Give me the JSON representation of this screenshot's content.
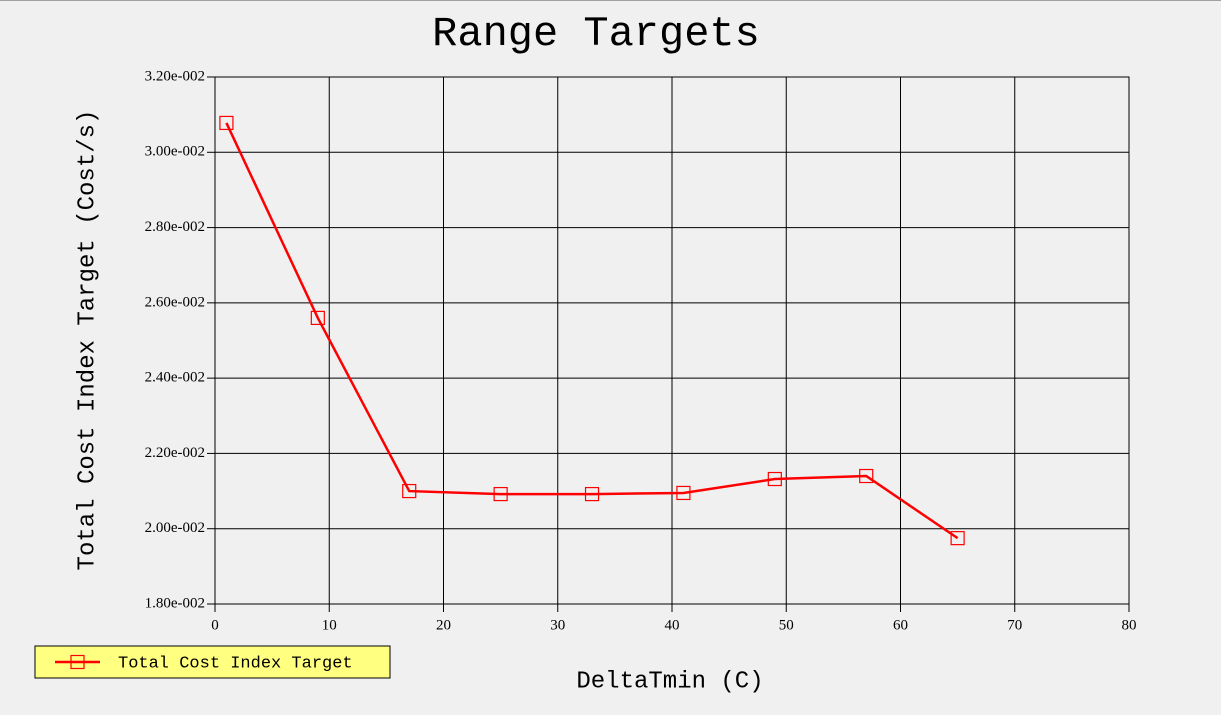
{
  "chart_data": {
    "type": "line",
    "title": "Range Targets",
    "x_label": "DeltaTmin (C)",
    "y_label": "Total Cost Index Target (Cost/s)",
    "x": [
      1,
      9,
      17,
      25,
      33,
      41,
      49,
      57,
      65
    ],
    "series": [
      {
        "name": "Total Cost Index Target",
        "color": "#ff0000",
        "values": [
          0.03078,
          0.0256,
          0.021,
          0.02092,
          0.02092,
          0.02095,
          0.02132,
          0.0214,
          0.01975
        ]
      }
    ],
    "xlim": [
      0,
      80
    ],
    "xticks": [
      0,
      10,
      20,
      30,
      40,
      50,
      60,
      70,
      80
    ],
    "ylim": [
      0.018,
      0.032
    ],
    "yticks": [
      {
        "value": 0.018,
        "label": "1.80e-002"
      },
      {
        "value": 0.02,
        "label": "2.00e-002"
      },
      {
        "value": 0.022,
        "label": "2.20e-002"
      },
      {
        "value": 0.024,
        "label": "2.40e-002"
      },
      {
        "value": 0.026,
        "label": "2.60e-002"
      },
      {
        "value": 0.028,
        "label": "2.80e-002"
      },
      {
        "value": 0.03,
        "label": "3.00e-002"
      },
      {
        "value": 0.032,
        "label": "3.20e-002"
      }
    ],
    "grid": true,
    "legend": "bottom-left",
    "legend_color": "#ffff80"
  }
}
